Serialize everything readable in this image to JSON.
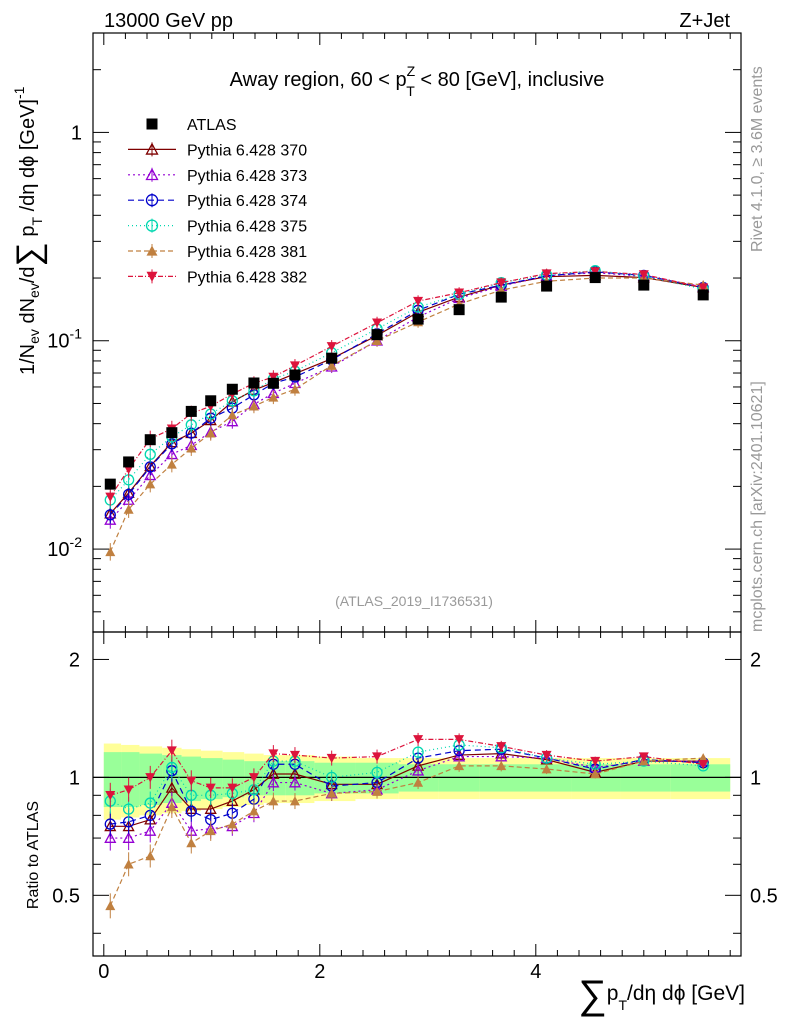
{
  "header": {
    "energy_label": "13000 GeV pp",
    "process_label": "Z+Jet",
    "rivet_label": "Rivet 4.1.0, ≥ 3.6M events",
    "mcplots_label": "mcplots.cern.ch [arXiv:2401.10621]",
    "analysis_label": "(ATLAS_2019_I1736531)"
  },
  "chart_data": {
    "type": "line",
    "title": "Away region, 60 < p_T^Z < 80 [GeV], inclusive",
    "title_parts": {
      "pre": "Away region, 60 < p",
      "sup": "Z",
      "sub": "T",
      "post": " < 80 [GeV], inclusive"
    },
    "xlabel": "∑ p_T/dη dϕ [GeV]",
    "xlabel_parts": {
      "sum": "∑",
      "p": "p",
      "sub": "T",
      "rest": "/dη dϕ [GeV]"
    },
    "ylabel": "1/N_ev dN_ev/d∑ p_T/dη dϕ [GeV]^-1",
    "ylabel_parts": {
      "a": "1/N",
      "a_sub": "ev",
      "b": " dN",
      "b_sub": "ev",
      "c": "/d",
      "sum": "∑",
      "p": " p",
      "p_sub": "T",
      "d": " /dη dϕ  [GeV]",
      "sup": "-1"
    },
    "ratio_ylabel": "Ratio to ATLAS",
    "xlim": [
      -0.1,
      5.9
    ],
    "ylim": [
      0.004,
      3.0
    ],
    "yscale": "log",
    "ratio_ylim": [
      0.35,
      2.35
    ],
    "x_ticks": [
      "0",
      "2",
      "4"
    ],
    "y_ticks": [
      {
        "base": "10",
        "exp": "-2"
      },
      {
        "base": "10",
        "exp": "-1"
      },
      {
        "base": "1",
        "exp": ""
      }
    ],
    "ratio_ticks": [
      "0.5",
      "1",
      "2"
    ],
    "x": [
      0.06,
      0.23,
      0.43,
      0.63,
      0.81,
      0.99,
      1.19,
      1.39,
      1.57,
      1.77,
      2.11,
      2.53,
      2.91,
      3.29,
      3.68,
      4.1,
      4.55,
      5.0,
      5.55
    ],
    "ratio_band_x": [
      0.0,
      0.16,
      0.33,
      0.54,
      0.72,
      0.9,
      1.1,
      1.3,
      1.48,
      1.68,
      1.95,
      2.33,
      2.73,
      3.1,
      3.48,
      3.9,
      4.33,
      4.78,
      5.25,
      5.8
    ],
    "ratio_band_inner": [
      0.16,
      0.16,
      0.15,
      0.14,
      0.13,
      0.12,
      0.11,
      0.1,
      0.1,
      0.1,
      0.09,
      0.09,
      0.08,
      0.08,
      0.08,
      0.08,
      0.08,
      0.08,
      0.08
    ],
    "ratio_band_outer": [
      0.22,
      0.21,
      0.2,
      0.19,
      0.18,
      0.17,
      0.16,
      0.15,
      0.14,
      0.14,
      0.13,
      0.12,
      0.12,
      0.12,
      0.12,
      0.12,
      0.12,
      0.12,
      0.12
    ],
    "series": [
      {
        "name": "ATLAS",
        "color": "#000000",
        "marker": "square-filled",
        "dash": "",
        "is_data": true,
        "values": [
          0.0205,
          0.0262,
          0.0335,
          0.0362,
          0.0458,
          0.0515,
          0.0585,
          0.0627,
          0.0625,
          0.0685,
          0.0825,
          0.107,
          0.127,
          0.141,
          0.162,
          0.183,
          0.201,
          0.185,
          0.166
        ]
      },
      {
        "name": "Pythia 6.428 370",
        "color": "#7f0000",
        "marker": "triangle-up-open",
        "dash": "",
        "values": [
          0.0148,
          0.0186,
          0.025,
          0.0325,
          0.036,
          0.0415,
          0.051,
          0.058,
          0.063,
          0.0695,
          0.082,
          0.106,
          0.137,
          0.162,
          0.185,
          0.203,
          0.206,
          0.201,
          0.18
        ],
        "ratio": [
          0.75,
          0.75,
          0.78,
          0.94,
          0.83,
          0.83,
          0.87,
          0.93,
          1.02,
          1.02,
          0.96,
          0.96,
          1.07,
          1.14,
          1.15,
          1.11,
          1.03,
          1.1,
          1.1
        ]
      },
      {
        "name": "Pythia 6.428 373",
        "color": "#9400d3",
        "marker": "triangle-up-open",
        "dash": "2,3",
        "values": [
          0.0138,
          0.0172,
          0.0226,
          0.0285,
          0.0315,
          0.0365,
          0.041,
          0.0495,
          0.056,
          0.0625,
          0.075,
          0.1,
          0.13,
          0.16,
          0.183,
          0.205,
          0.212,
          0.204,
          0.182
        ],
        "ratio": [
          0.7,
          0.7,
          0.73,
          0.86,
          0.73,
          0.74,
          0.75,
          0.81,
          0.97,
          0.97,
          0.91,
          0.93,
          1.04,
          1.13,
          1.13,
          1.12,
          1.06,
          1.1,
          1.1
        ]
      },
      {
        "name": "Pythia 6.428 374",
        "color": "#0000cc",
        "marker": "circle-open",
        "dash": "6,4",
        "values": [
          0.0146,
          0.0183,
          0.0248,
          0.032,
          0.036,
          0.0425,
          0.0475,
          0.055,
          0.0625,
          0.067,
          0.081,
          0.108,
          0.14,
          0.167,
          0.185,
          0.205,
          0.214,
          0.206,
          0.18
        ],
        "ratio": [
          0.76,
          0.77,
          0.8,
          1.04,
          0.82,
          0.78,
          0.81,
          0.88,
          1.08,
          1.08,
          0.95,
          0.97,
          1.12,
          1.17,
          1.18,
          1.12,
          1.05,
          1.11,
          1.09
        ]
      },
      {
        "name": "Pythia 6.428 375",
        "color": "#00d7b0",
        "marker": "circle-open",
        "dash": "1,3",
        "values": [
          0.0172,
          0.0215,
          0.0285,
          0.0345,
          0.0395,
          0.0445,
          0.0515,
          0.0575,
          0.0655,
          0.0715,
          0.0875,
          0.114,
          0.145,
          0.167,
          0.19,
          0.207,
          0.217,
          0.204,
          0.177
        ],
        "ratio": [
          0.87,
          0.83,
          0.86,
          1.06,
          0.9,
          0.9,
          0.91,
          0.93,
          1.1,
          1.1,
          1.0,
          1.03,
          1.16,
          1.21,
          1.19,
          1.12,
          1.08,
          1.1,
          1.07
        ]
      },
      {
        "name": "Pythia 6.428 381",
        "color": "#c08040",
        "marker": "triangle-up-filled",
        "dash": "5,3",
        "values": [
          0.0097,
          0.0155,
          0.0205,
          0.0255,
          0.0305,
          0.036,
          0.044,
          0.0485,
          0.0535,
          0.0585,
          0.076,
          0.1,
          0.123,
          0.15,
          0.175,
          0.193,
          0.2,
          0.2,
          0.185
        ],
        "ratio": [
          0.47,
          0.6,
          0.63,
          0.84,
          0.68,
          0.73,
          0.76,
          0.82,
          0.87,
          0.87,
          0.91,
          0.92,
          0.97,
          1.07,
          1.07,
          1.05,
          1.02,
          1.1,
          1.12
        ]
      },
      {
        "name": "Pythia 6.428 382",
        "color": "#dc143c",
        "marker": "triangle-down-filled",
        "dash": "5,2,1,2",
        "values": [
          0.0178,
          0.0242,
          0.0338,
          0.0378,
          0.0448,
          0.0485,
          0.0555,
          0.0625,
          0.067,
          0.076,
          0.094,
          0.122,
          0.155,
          0.17,
          0.19,
          0.21,
          0.215,
          0.208,
          0.18
        ],
        "ratio": [
          0.9,
          0.93,
          1.0,
          1.17,
          0.98,
          0.94,
          0.94,
          1.0,
          1.15,
          1.14,
          1.12,
          1.13,
          1.25,
          1.25,
          1.2,
          1.14,
          1.1,
          1.13,
          1.08
        ]
      }
    ]
  }
}
